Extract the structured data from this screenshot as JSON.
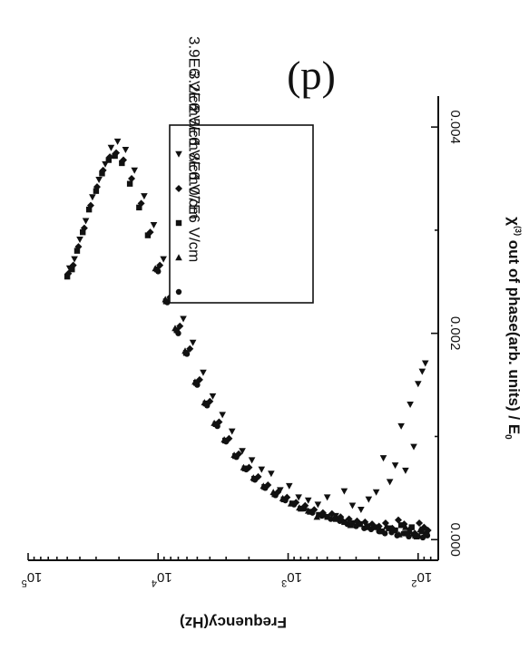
{
  "chart_data": {
    "type": "scatter",
    "title": "",
    "panel_label": "(d)",
    "xlabel": "Frequency(Hz)",
    "ylabel": "χ(3) out of phase(arb. units) / E0",
    "ylabel_prefix": "χ",
    "ylabel_sup": "(3)",
    "ylabel_main": " out of phase(arb. units) / E",
    "ylabel_sub": "0",
    "x_scale": "log",
    "xlim": [
      70,
      100000
    ],
    "ylim": [
      -0.0002,
      0.0043
    ],
    "x_ticks": [
      {
        "value": 100,
        "base": "10",
        "exp": "2"
      },
      {
        "value": 1000,
        "base": "10",
        "exp": "3"
      },
      {
        "value": 10000,
        "base": "10",
        "exp": "4"
      },
      {
        "value": 100000,
        "base": "10",
        "exp": "5"
      }
    ],
    "y_ticks": [
      {
        "value": 0.0,
        "label": "0.000"
      },
      {
        "value": 0.002,
        "label": "0.002"
      },
      {
        "value": 0.004,
        "label": "0.004"
      }
    ],
    "grid": false,
    "legend_position": "upper-left",
    "series": [
      {
        "name": "1.07E6 V/cm",
        "marker": "circle",
        "color": "#111111",
        "x": [
          85,
          92,
          100,
          108,
          118,
          130,
          145,
          160,
          180,
          200,
          230,
          260,
          300,
          350,
          400,
          470,
          550,
          650,
          750,
          900,
          1050,
          1250,
          1500,
          1800,
          2100,
          2500,
          3000,
          3500,
          4200,
          5000,
          6000,
          7000,
          8500,
          10000
        ],
        "y": [
          4e-05,
          2e-05,
          3e-05,
          5e-05,
          3e-05,
          6e-05,
          4e-05,
          7e-05,
          6e-05,
          8e-05,
          0.0001,
          0.00011,
          0.00013,
          0.00015,
          0.00018,
          0.0002,
          0.00023,
          0.00026,
          0.0003,
          0.00034,
          0.00038,
          0.00043,
          0.0005,
          0.00058,
          0.00068,
          0.0008,
          0.00095,
          0.0011,
          0.0013,
          0.0015,
          0.0018,
          0.002,
          0.0023,
          0.0026
        ]
      },
      {
        "name": "1.8E6 V/cm",
        "marker": "triangle-up",
        "color": "#111111",
        "x": [
          88,
          96,
          105,
          115,
          125,
          140,
          155,
          175,
          195,
          220,
          250,
          290,
          330,
          380,
          440,
          520,
          600,
          700,
          820,
          950,
          1100,
          1300,
          1550,
          1850,
          2200,
          2600,
          3100,
          3700,
          4400,
          5200,
          6200,
          7400,
          8800,
          10500
        ],
        "y": [
          6e-05,
          0.0001,
          4e-05,
          8e-05,
          0.00012,
          5e-05,
          0.0001,
          0.00013,
          9e-05,
          0.00014,
          0.00012,
          0.00016,
          0.00014,
          0.00019,
          0.00021,
          0.00024,
          0.00022,
          0.00028,
          0.00031,
          0.00035,
          0.0004,
          0.00046,
          0.00052,
          0.0006,
          0.0007,
          0.00082,
          0.00097,
          0.00113,
          0.00133,
          0.00153,
          0.00183,
          0.00205,
          0.00233,
          0.00263
        ]
      },
      {
        "name": "2.5E6 V/cm",
        "marker": "square",
        "color": "#111111",
        "x": [
          86,
          94,
          103,
          112,
          122,
          135,
          150,
          168,
          190,
          215,
          245,
          280,
          320,
          370,
          430,
          500,
          580,
          680,
          800,
          930,
          1080,
          1270,
          1520,
          1820,
          2150,
          2550,
          3050,
          3600,
          4300,
          5100,
          6100,
          7200,
          8700,
          10200,
          12000,
          14000,
          16500,
          19000,
          21500,
          24000,
          27000,
          30000,
          34000,
          38000,
          42000,
          46000,
          50000
        ],
        "y": [
          5e-05,
          8e-05,
          3e-05,
          0.00012,
          6e-05,
          0.00014,
          9e-05,
          0.00011,
          8e-05,
          0.00012,
          0.00013,
          0.00015,
          0.00016,
          0.00017,
          0.0002,
          0.00022,
          0.00024,
          0.00027,
          0.0003,
          0.00035,
          0.00039,
          0.00044,
          0.00051,
          0.00059,
          0.00069,
          0.00081,
          0.00096,
          0.00112,
          0.00132,
          0.00152,
          0.00181,
          0.00203,
          0.00231,
          0.00262,
          0.00295,
          0.00322,
          0.00345,
          0.00365,
          0.00372,
          0.00368,
          0.00355,
          0.00338,
          0.0032,
          0.00298,
          0.0028,
          0.00262,
          0.00255
        ]
      },
      {
        "name": "3.2E6 V/cm",
        "marker": "diamond",
        "color": "#111111",
        "x": [
          84,
          90,
          98,
          106,
          116,
          128,
          142,
          158,
          178,
          200,
          226,
          256,
          295,
          340,
          395,
          460,
          540,
          630,
          740,
          870,
          1020,
          1200,
          1430,
          1700,
          2000,
          2400,
          2850,
          3400,
          4000,
          4800,
          5700,
          6800,
          8100,
          9700,
          11500,
          13500,
          16000,
          18500,
          21000,
          23500,
          26500,
          29500,
          33000,
          37000,
          41000,
          45000,
          49000
        ],
        "y": [
          9e-05,
          0.00012,
          0.00016,
          6e-05,
          0.0001,
          0.00015,
          0.00019,
          0.00011,
          0.00016,
          0.00013,
          0.00015,
          0.00017,
          0.00018,
          0.0002,
          0.00022,
          0.00025,
          0.00026,
          0.00029,
          0.00033,
          0.00036,
          0.00041,
          0.00046,
          0.00053,
          0.00061,
          0.0007,
          0.00083,
          0.00098,
          0.00114,
          0.00134,
          0.00155,
          0.00185,
          0.00207,
          0.00235,
          0.00266,
          0.00298,
          0.00326,
          0.0035,
          0.00368,
          0.00375,
          0.00371,
          0.00358,
          0.00342,
          0.00324,
          0.00302,
          0.00284,
          0.00266,
          0.00258
        ]
      },
      {
        "name": "3.9E6 V/cm",
        "marker": "triangle-down",
        "color": "#111111",
        "x": [
          88,
          93,
          100,
          108,
          115,
          125,
          135,
          150,
          165,
          185,
          210,
          240,
          275,
          320,
          370,
          430,
          500,
          590,
          700,
          830,
          980,
          1150,
          1350,
          1600,
          1900,
          2250,
          2700,
          3200,
          3800,
          4500,
          5400,
          6400,
          7600,
          9100,
          10800,
          12800,
          15200,
          17800,
          20500,
          23000,
          25500,
          28500,
          32000,
          36000,
          40000,
          44000,
          48000
        ],
        "y": [
          0.00171,
          0.00163,
          0.00151,
          0.0009,
          0.00131,
          0.00067,
          0.0011,
          0.00072,
          0.00056,
          0.00079,
          0.00046,
          0.00039,
          0.00029,
          0.00033,
          0.00047,
          0.00023,
          0.00041,
          0.00034,
          0.00038,
          0.00041,
          0.00052,
          0.00048,
          0.00064,
          0.00068,
          0.00077,
          0.00086,
          0.00105,
          0.00121,
          0.00139,
          0.00162,
          0.00191,
          0.00214,
          0.00241,
          0.00272,
          0.00305,
          0.00333,
          0.00358,
          0.00378,
          0.00386,
          0.0038,
          0.00364,
          0.00349,
          0.00332,
          0.00309,
          0.00291,
          0.00272,
          0.00263
        ]
      }
    ]
  }
}
